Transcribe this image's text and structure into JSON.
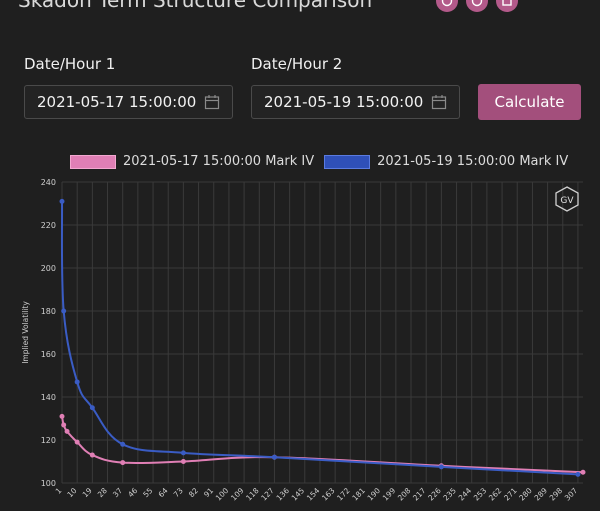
{
  "header": {
    "title": "Skadon Term Structure Comparison"
  },
  "form": {
    "date1_label": "Date/Hour 1",
    "date1_value": "2021-05-17 15:00:00",
    "date2_label": "Date/Hour 2",
    "date2_value": "2021-05-19 15:00:00",
    "calculate_label": "Calculate"
  },
  "badge": {
    "text": "GV"
  },
  "colors": {
    "series1": "#e07fb5",
    "series2": "#3a5cc4",
    "accent": "#a34f7c",
    "grid": "#3a3a3a"
  },
  "chart_data": {
    "type": "line",
    "ylabel": "Implied Volatility",
    "ylim": [
      100,
      240
    ],
    "yticks": [
      100,
      120,
      140,
      160,
      180,
      200,
      220,
      240
    ],
    "xlim": [
      1,
      310
    ],
    "xticks": [
      "1",
      "10",
      "19",
      "28",
      "37",
      "46",
      "55",
      "64",
      "73",
      "82",
      "91",
      "100",
      "109",
      "118",
      "127",
      "136",
      "145",
      "154",
      "163",
      "172",
      "181",
      "190",
      "199",
      "208",
      "217",
      "226",
      "235",
      "244",
      "253",
      "262",
      "271",
      "280",
      "289",
      "298",
      "307"
    ],
    "series": [
      {
        "name": "2021-05-17 15:00:00 Mark IV",
        "color": "#e07fb5",
        "points": [
          [
            1,
            131
          ],
          [
            2,
            127
          ],
          [
            4,
            124
          ],
          [
            10,
            119
          ],
          [
            19,
            113
          ],
          [
            37,
            109.5
          ],
          [
            73,
            110
          ],
          [
            127,
            112
          ],
          [
            226,
            108
          ],
          [
            310,
            105
          ]
        ]
      },
      {
        "name": "2021-05-19 15:00:00 Mark IV",
        "color": "#3a5cc4",
        "points": [
          [
            1,
            231
          ],
          [
            2,
            180
          ],
          [
            10,
            147
          ],
          [
            19,
            135
          ],
          [
            37,
            118
          ],
          [
            73,
            114
          ],
          [
            127,
            112
          ],
          [
            226,
            107.5
          ],
          [
            307,
            104
          ]
        ]
      }
    ]
  }
}
